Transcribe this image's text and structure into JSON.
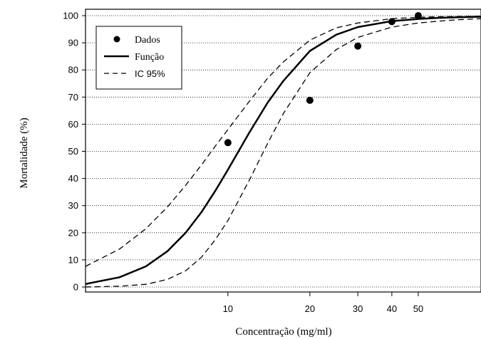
{
  "chart_data": {
    "type": "line",
    "xlabel": "Concentração (mg/ml)",
    "ylabel": "Mortalidade (%)",
    "x_scale": "log",
    "xlim": [
      3,
      85
    ],
    "ylim": [
      0,
      100
    ],
    "x_ticks": [
      10,
      20,
      30,
      40,
      50
    ],
    "y_ticks": [
      0,
      10,
      20,
      30,
      40,
      50,
      60,
      70,
      80,
      90,
      100
    ],
    "grid": "horizontal dotted",
    "legend_position": "top-left",
    "legend": {
      "data": "Dados",
      "fit": "Função",
      "ci": "IC 95%"
    },
    "series": [
      {
        "name": "Dados",
        "kind": "points",
        "x": [
          10,
          20,
          30,
          40,
          50
        ],
        "y": [
          53.2,
          68.8,
          88.8,
          97.8,
          100
        ]
      },
      {
        "name": "Função",
        "kind": "line",
        "x": [
          3,
          4,
          5,
          6,
          7,
          8,
          9,
          10,
          12,
          14,
          16,
          20,
          25,
          30,
          40,
          50,
          60,
          70,
          85
        ],
        "y": [
          1.1,
          3.6,
          7.6,
          13.2,
          20,
          27.6,
          35.5,
          43.2,
          57,
          68,
          76,
          87,
          93,
          95.8,
          98,
          98.8,
          99.2,
          99.4,
          99.6
        ]
      },
      {
        "name": "IC 95% (superior)",
        "kind": "dashed",
        "x": [
          3,
          4,
          5,
          6,
          7,
          8,
          9,
          10,
          12,
          14,
          16,
          20,
          25,
          30,
          40,
          50,
          60,
          70,
          85
        ],
        "y": [
          7.6,
          14,
          21.5,
          29.5,
          37.5,
          45,
          52,
          58,
          68.5,
          77,
          83,
          91,
          95.5,
          97.3,
          98.9,
          99.4,
          99.6,
          99.7,
          99.8
        ]
      },
      {
        "name": "IC 95% (inferior)",
        "kind": "dashed",
        "x": [
          3,
          4,
          5,
          6,
          7,
          8,
          9,
          10,
          12,
          14,
          16,
          20,
          25,
          30,
          40,
          50,
          60,
          70,
          85
        ],
        "y": [
          0,
          0.3,
          1,
          2.8,
          6,
          11,
          17.5,
          24.5,
          39.5,
          53,
          64,
          79,
          87.5,
          92,
          95.8,
          97.3,
          98,
          98.5,
          98.9
        ]
      }
    ]
  }
}
